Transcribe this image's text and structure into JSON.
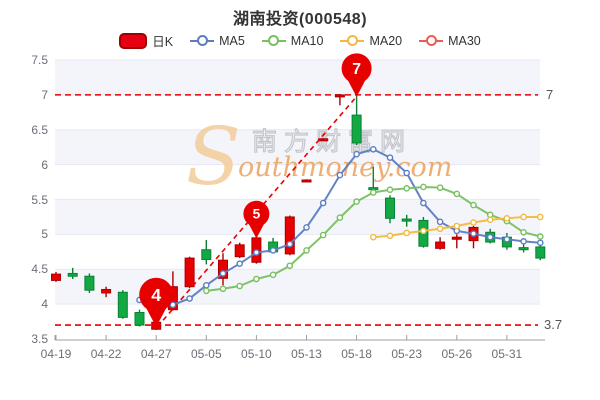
{
  "title": "湖南投资(000548)",
  "legend": {
    "items": [
      {
        "label": "日K",
        "type": "rect",
        "color": "#e60012",
        "border": "#a00000"
      },
      {
        "label": "MA5",
        "type": "line",
        "color": "#5b7cc4"
      },
      {
        "label": "MA10",
        "type": "line",
        "color": "#77c05e"
      },
      {
        "label": "MA20",
        "type": "line",
        "color": "#f2b93f"
      },
      {
        "label": "MA30",
        "type": "line",
        "color": "#ea5b5b"
      }
    ]
  },
  "watermark": {
    "initial": "S",
    "cn": "南方财富网",
    "en": "outhmoney.com"
  },
  "y_axis": {
    "labels": [
      "7.5",
      "7",
      "6.5",
      "6",
      "5.5",
      "5",
      "4.5",
      "4",
      "3.5"
    ],
    "min": 3.5,
    "max": 7.5
  },
  "x_axis": {
    "labels": [
      "04-19",
      "04-22",
      "04-27",
      "05-05",
      "05-10",
      "05-13",
      "05-18",
      "05-23",
      "05-26",
      "05-31"
    ],
    "label_every": 3
  },
  "annotations": {
    "color": "#e60000",
    "hlines": [
      {
        "value": 7,
        "label": "7"
      },
      {
        "value": 3.7,
        "label": "3.7"
      }
    ],
    "trendline": {
      "from_index": 6,
      "from_value": 3.7,
      "to_index": 18,
      "to_value": 7.0
    },
    "markers": [
      {
        "label": "4",
        "index": 6,
        "value": 3.7
      },
      {
        "label": "5",
        "index": 12,
        "value": 4.97
      },
      {
        "label": "7",
        "index": 18,
        "value": 7.0
      }
    ]
  },
  "chart_data": {
    "type": "candlestick",
    "title": "湖南投资(000548)",
    "ylim": [
      3.5,
      7.5
    ],
    "x_tick_labels": [
      "04-19",
      "04-22",
      "04-27",
      "05-05",
      "05-10",
      "05-13",
      "05-18",
      "05-23",
      "05-26",
      "05-31"
    ],
    "up_color": "#e60000",
    "up_border": "#ab0000",
    "down_color": "#12a843",
    "down_border": "#0a8033",
    "candles": [
      {
        "o": 4.34,
        "h": 4.46,
        "l": 4.32,
        "c": 4.43,
        "d": "up"
      },
      {
        "o": 4.44,
        "h": 4.52,
        "l": 4.36,
        "c": 4.4,
        "d": "down"
      },
      {
        "o": 4.4,
        "h": 4.44,
        "l": 4.16,
        "c": 4.2,
        "d": "down"
      },
      {
        "o": 4.16,
        "h": 4.25,
        "l": 4.1,
        "c": 4.21,
        "d": "up"
      },
      {
        "o": 4.17,
        "h": 4.2,
        "l": 3.79,
        "c": 3.81,
        "d": "down"
      },
      {
        "o": 3.88,
        "h": 3.92,
        "l": 3.68,
        "c": 3.7,
        "d": "down"
      },
      {
        "o": 3.64,
        "h": 3.76,
        "l": 3.63,
        "c": 3.74,
        "d": "up"
      },
      {
        "o": 3.92,
        "h": 4.47,
        "l": 3.91,
        "c": 4.25,
        "d": "up"
      },
      {
        "o": 4.25,
        "h": 4.68,
        "l": 4.23,
        "c": 4.66,
        "d": "up"
      },
      {
        "o": 4.78,
        "h": 4.92,
        "l": 4.57,
        "c": 4.64,
        "d": "down"
      },
      {
        "o": 4.37,
        "h": 4.73,
        "l": 4.27,
        "c": 4.63,
        "d": "up"
      },
      {
        "o": 4.68,
        "h": 4.88,
        "l": 4.66,
        "c": 4.85,
        "d": "up"
      },
      {
        "o": 4.6,
        "h": 4.97,
        "l": 4.58,
        "c": 4.95,
        "d": "up"
      },
      {
        "o": 4.89,
        "h": 4.95,
        "l": 4.73,
        "c": 4.75,
        "d": "down"
      },
      {
        "o": 4.72,
        "h": 5.27,
        "l": 4.7,
        "c": 5.25,
        "d": "up"
      },
      {
        "o": 5.77,
        "h": 5.79,
        "l": 5.76,
        "c": 5.78,
        "d": "up"
      },
      {
        "o": 6.36,
        "h": 6.38,
        "l": 6.35,
        "c": 6.37,
        "d": "up"
      },
      {
        "o": 6.99,
        "h": 7.01,
        "l": 6.85,
        "c": 7.0,
        "d": "up"
      },
      {
        "o": 6.71,
        "h": 7.05,
        "l": 6.28,
        "c": 6.31,
        "d": "down"
      },
      {
        "o": 5.67,
        "h": 5.97,
        "l": 5.63,
        "c": 5.66,
        "d": "down"
      },
      {
        "o": 5.52,
        "h": 5.56,
        "l": 5.16,
        "c": 5.23,
        "d": "down"
      },
      {
        "o": 5.22,
        "h": 5.28,
        "l": 5.11,
        "c": 5.19,
        "d": "down"
      },
      {
        "o": 5.2,
        "h": 5.25,
        "l": 4.81,
        "c": 4.83,
        "d": "down"
      },
      {
        "o": 4.8,
        "h": 4.96,
        "l": 4.78,
        "c": 4.89,
        "d": "up"
      },
      {
        "o": 4.93,
        "h": 5.0,
        "l": 4.8,
        "c": 4.96,
        "d": "up"
      },
      {
        "o": 4.91,
        "h": 5.12,
        "l": 4.8,
        "c": 5.1,
        "d": "up"
      },
      {
        "o": 5.03,
        "h": 5.08,
        "l": 4.87,
        "c": 4.89,
        "d": "down"
      },
      {
        "o": 4.96,
        "h": 5.02,
        "l": 4.78,
        "c": 4.82,
        "d": "down"
      },
      {
        "o": 4.81,
        "h": 4.86,
        "l": 4.74,
        "c": 4.78,
        "d": "down"
      },
      {
        "o": 4.82,
        "h": 4.86,
        "l": 4.63,
        "c": 4.66,
        "d": "down"
      }
    ],
    "series": [
      {
        "name": "MA5",
        "color": "#5b7cc4",
        "start_index": 5,
        "values": [
          4.06,
          4.01,
          3.99,
          4.08,
          4.27,
          4.44,
          4.58,
          4.74,
          4.77,
          4.86,
          5.1,
          5.45,
          5.85,
          6.15,
          6.22,
          6.1,
          5.88,
          5.45,
          5.18,
          5.05,
          5.01,
          4.96,
          4.93,
          4.9,
          4.88
        ]
      },
      {
        "name": "MA10",
        "color": "#77c05e",
        "start_index": 9,
        "values": [
          4.19,
          4.22,
          4.26,
          4.36,
          4.42,
          4.55,
          4.77,
          4.99,
          5.24,
          5.47,
          5.6,
          5.64,
          5.66,
          5.68,
          5.67,
          5.58,
          5.42,
          5.28,
          5.19,
          5.03,
          4.97
        ]
      },
      {
        "name": "MA20",
        "color": "#f2b93f",
        "start_index": 19,
        "values": [
          4.96,
          4.98,
          5.02,
          5.05,
          5.08,
          5.12,
          5.17,
          5.21,
          5.23,
          5.25,
          5.25
        ]
      },
      {
        "name": "MA30",
        "color": "#ea5b5b",
        "start_index": 29,
        "values": []
      }
    ]
  },
  "colors": {
    "band": "#f3f5fa",
    "grid": "#e6e9f2",
    "axis": "#9aa0a6",
    "watermark_cn": "#c5c6cc",
    "watermark_en": "#eda15b",
    "watermark_initial": "#f2cf9e"
  }
}
